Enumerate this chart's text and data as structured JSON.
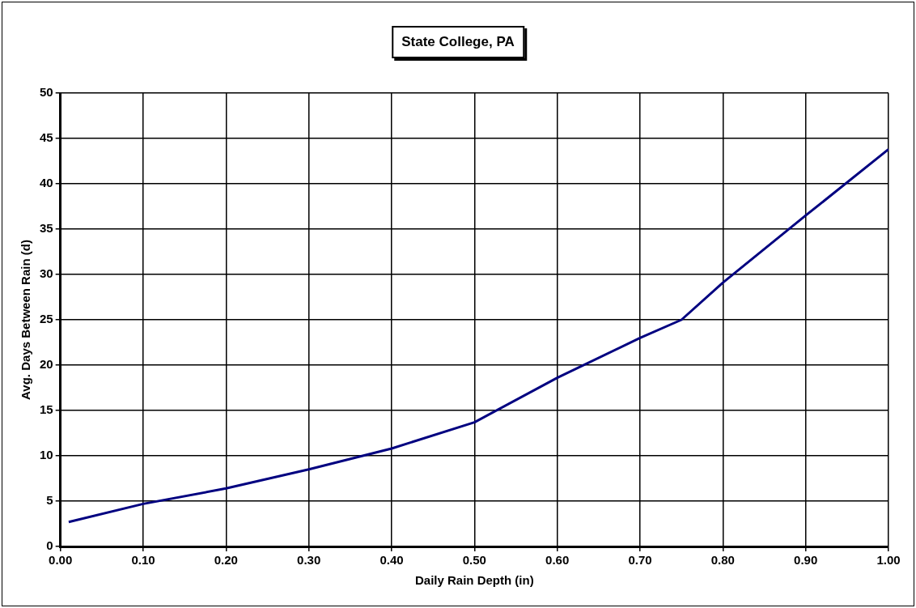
{
  "chart_data": {
    "type": "line",
    "title": "State College, PA",
    "xlabel": "Daily Rain Depth (in)",
    "ylabel": "Avg. Days Between Rain (d)",
    "x": [
      0.01,
      0.1,
      0.2,
      0.3,
      0.4,
      0.5,
      0.6,
      0.7,
      0.75,
      0.8,
      0.9,
      1.0
    ],
    "series": [
      {
        "color": "#000080",
        "values": [
          2.7,
          4.7,
          6.4,
          8.5,
          10.8,
          13.7,
          18.6,
          23.0,
          25.0,
          29.1,
          36.5,
          43.8
        ]
      }
    ],
    "xlim": [
      0,
      1
    ],
    "xticks": [
      {
        "value": 0,
        "label": "0.00"
      },
      {
        "value": 0.1,
        "label": "0.10"
      },
      {
        "value": 0.2,
        "label": "0.20"
      },
      {
        "value": 0.3,
        "label": "0.30"
      },
      {
        "value": 0.4,
        "label": "0.40"
      },
      {
        "value": 0.5,
        "label": "0.50"
      },
      {
        "value": 0.6,
        "label": "0.60"
      },
      {
        "value": 0.7,
        "label": "0.70"
      },
      {
        "value": 0.8,
        "label": "0.80"
      },
      {
        "value": 0.9,
        "label": "0.90"
      },
      {
        "value": 1,
        "label": "1.00"
      }
    ],
    "ylim": [
      0,
      50
    ],
    "yticks": [
      0,
      5,
      10,
      15,
      20,
      25,
      30,
      35,
      40,
      45,
      50
    ],
    "grid": true,
    "legend": false,
    "marker": "none",
    "line_style": "solid"
  }
}
